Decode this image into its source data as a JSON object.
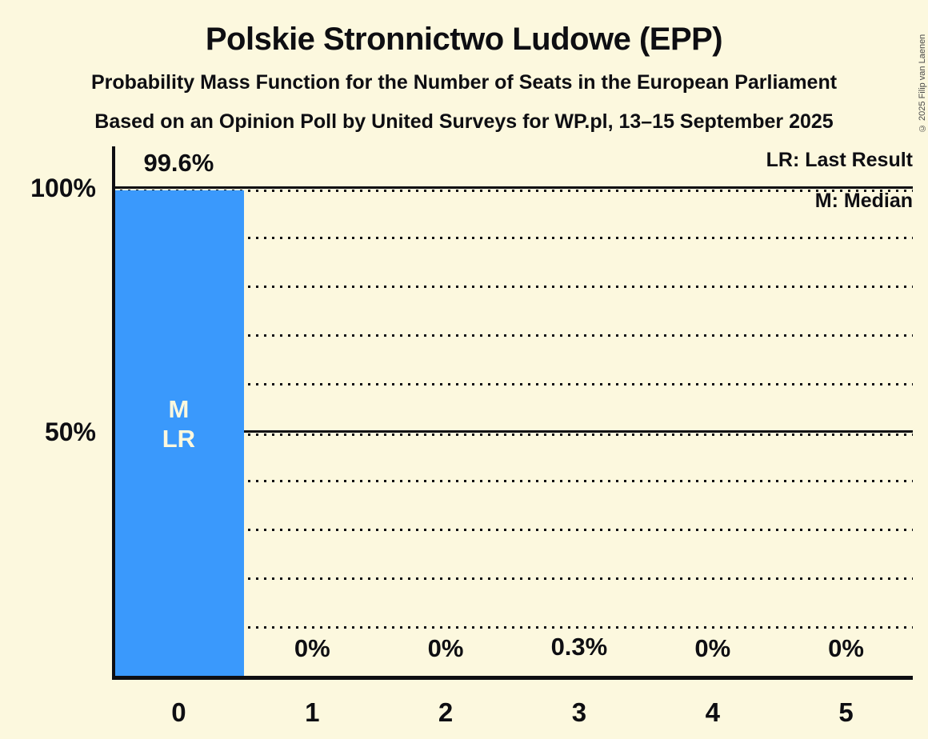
{
  "header": {
    "title": "Polskie Stronnictwo Ludowe (EPP)",
    "subtitle_line1": "Probability Mass Function for the Number of Seats in the European Parliament",
    "subtitle_line2": "Based on an Opinion Poll by United Surveys for WP.pl, 13–15 September 2025"
  },
  "legend": {
    "lr_label": "LR: Last Result",
    "m_label": "M: Median"
  },
  "copyright": "© 2025 Filip van Laenen",
  "colors": {
    "background": "#FCF8DE",
    "bar": "#3A99FC",
    "text": "#0E0E12",
    "bar_label": "#FCF8DE",
    "copyright": "#4A4A4A"
  },
  "chart_data": {
    "type": "bar",
    "title": "Polskie Stronnictwo Ludowe (EPP)",
    "subtitle": "Probability Mass Function for the Number of Seats in the European Parliament",
    "source_line": "Based on an Opinion Poll by United Surveys for WP.pl, 13–15 September 2025",
    "categories": [
      "0",
      "1",
      "2",
      "3",
      "4",
      "5"
    ],
    "values": [
      99.6,
      0,
      0,
      0.3,
      0,
      0
    ],
    "value_labels": [
      "99.6%",
      "0%",
      "0%",
      "0.3%",
      "0%",
      "0%"
    ],
    "bar_annotations": [
      [
        "M",
        "LR"
      ],
      [],
      [],
      [],
      [],
      []
    ],
    "ylim": [
      0,
      100
    ],
    "yticks": [
      {
        "value": 100,
        "label": "100%"
      },
      {
        "value": 50,
        "label": "50%"
      }
    ],
    "gridlines": {
      "dotted_percent": [
        90,
        80,
        70,
        60,
        40,
        30,
        20,
        10
      ],
      "solid_percent": [
        100,
        50
      ]
    },
    "legend_entries": [
      "LR: Last Result",
      "M: Median"
    ],
    "legend_position": "top-right",
    "grid": "horizontal dotted lines every 10%, solid lines at 50% and 100%"
  }
}
